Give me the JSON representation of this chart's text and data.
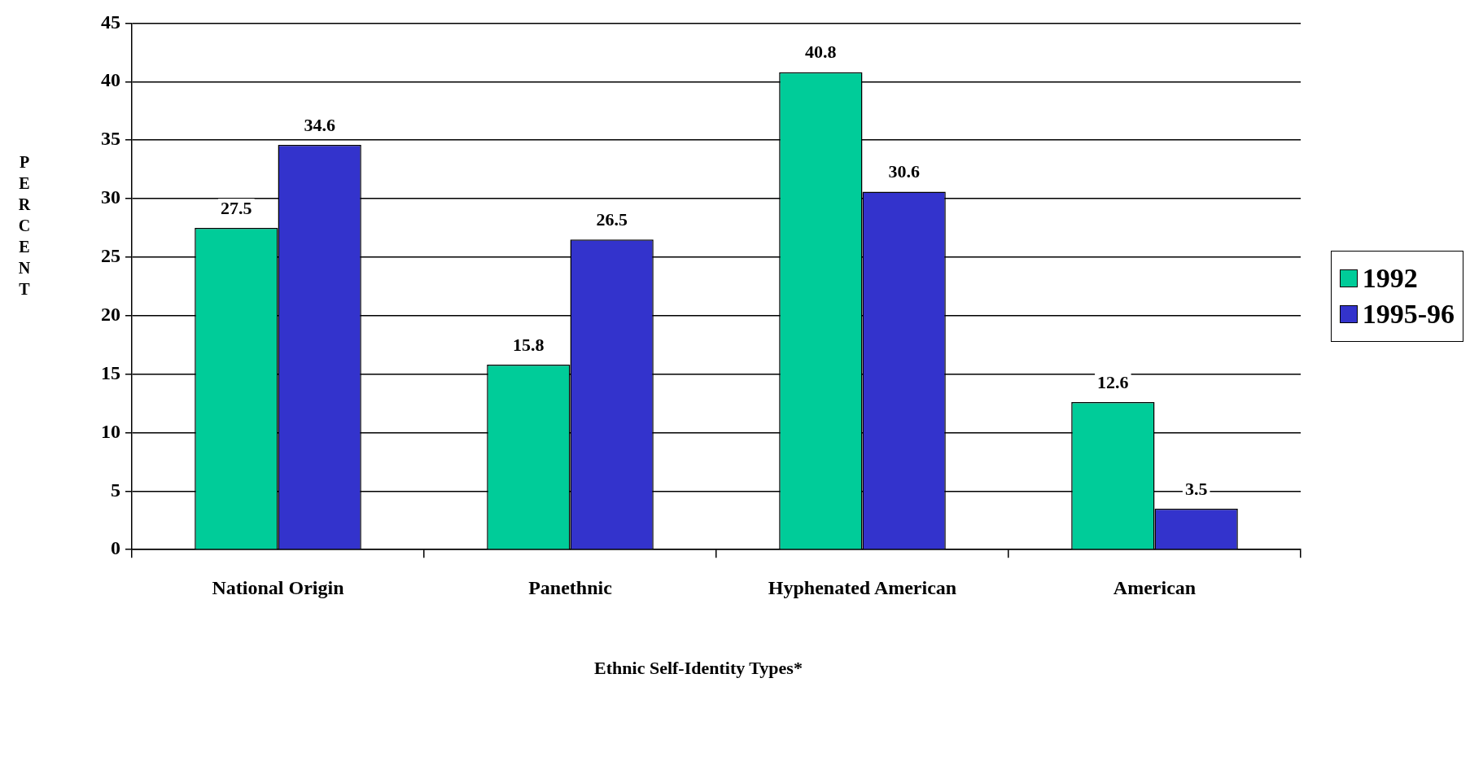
{
  "chart_data": {
    "type": "bar",
    "xlabel": "Ethnic Self-Identity Types*",
    "ylabel": "PERCENT",
    "categories": [
      "National Origin",
      "Panethnic",
      "Hyphenated American",
      "American"
    ],
    "series": [
      {
        "name": "1992",
        "color": "#00cc99",
        "values": [
          27.5,
          15.8,
          40.8,
          12.6
        ]
      },
      {
        "name": "1995-96",
        "color": "#3333cc",
        "values": [
          34.6,
          26.5,
          30.6,
          3.5
        ]
      }
    ],
    "ylim": [
      0,
      45
    ],
    "yticks": [
      0,
      5,
      10,
      15,
      20,
      25,
      30,
      35,
      40,
      45
    ],
    "grid": "y",
    "legend": "right",
    "data_labels": true
  }
}
